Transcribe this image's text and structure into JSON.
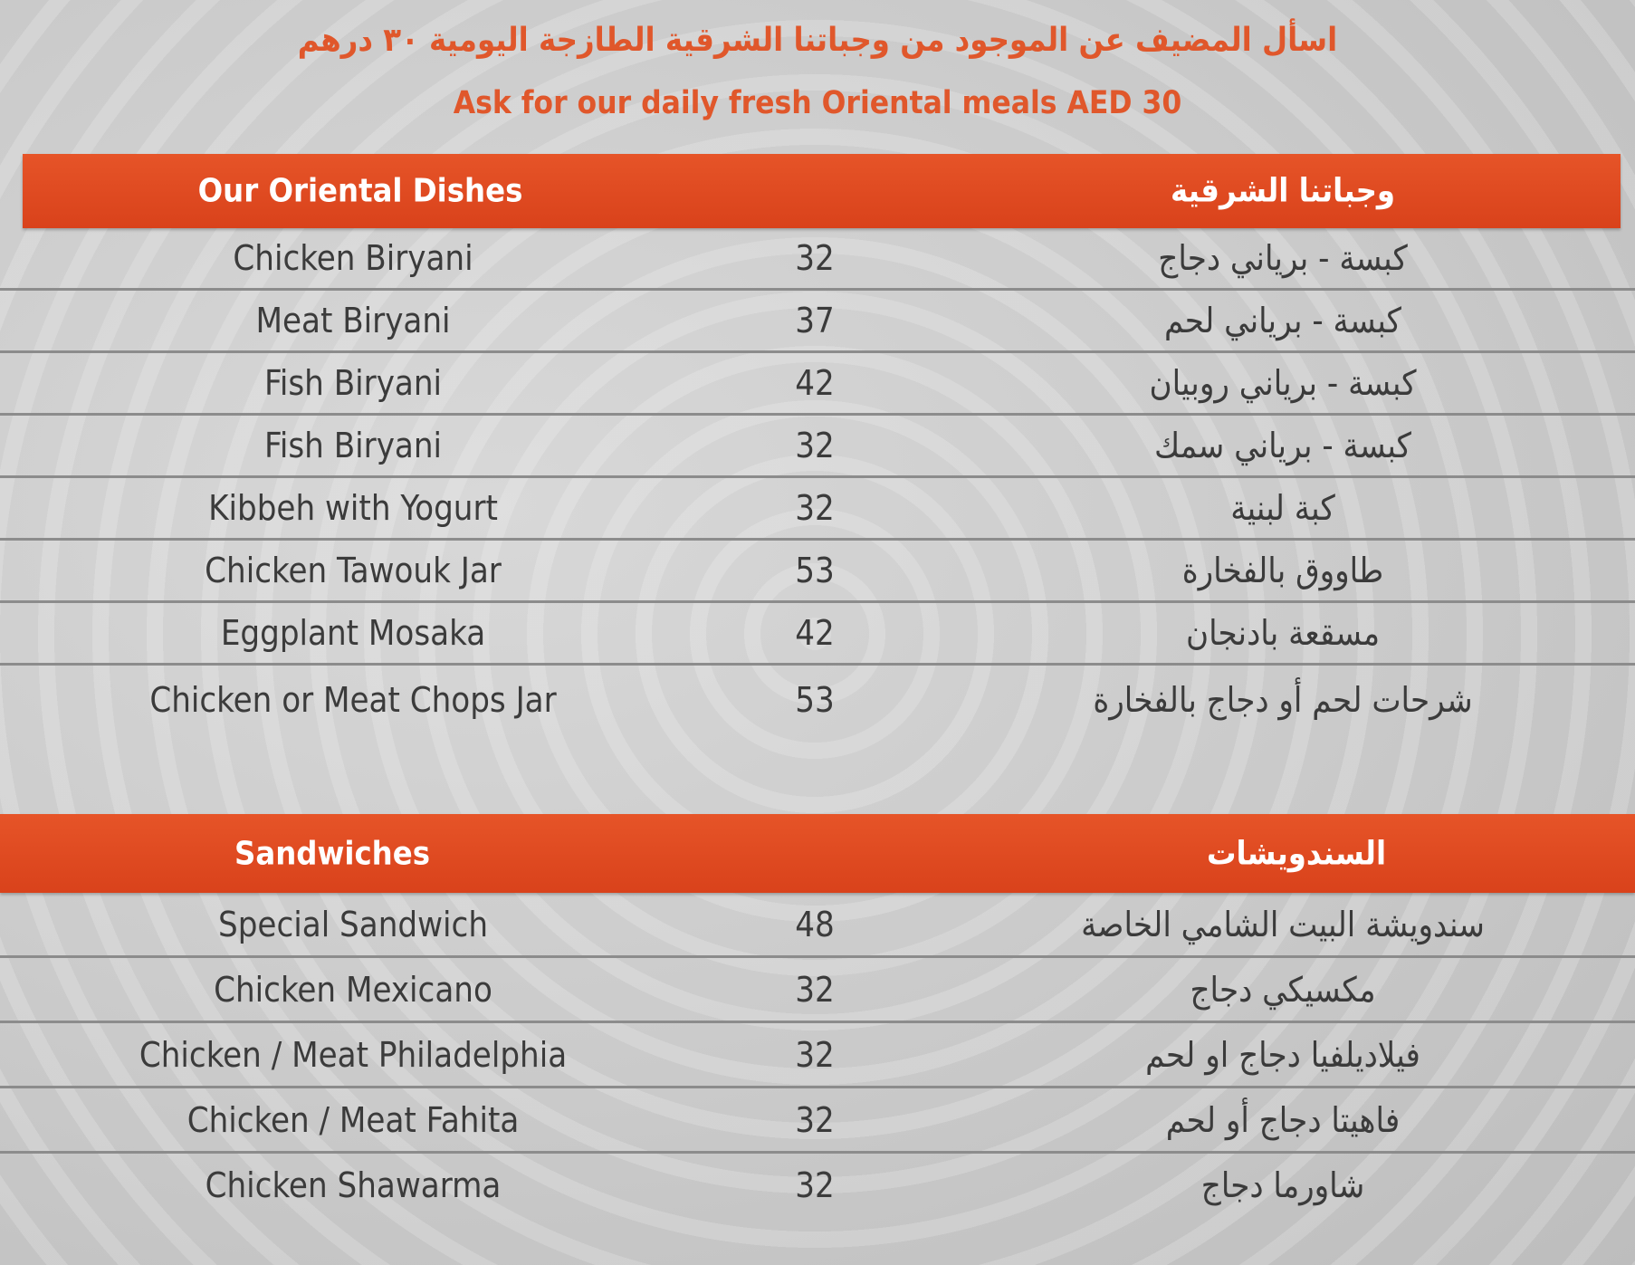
{
  "intro": {
    "arabic": "اسأل المضيف عن الموجود من وجباتنا الشرقية الطازجة اليومية ٣٠ درهم",
    "english": "Ask for our daily fresh Oriental meals AED 30"
  },
  "colors": {
    "accent": "#e04a1f",
    "background": "#cccccc",
    "text": "#3b3b3b"
  },
  "sections": [
    {
      "title_en": "Our Oriental Dishes",
      "title_ar": "وجباتنا الشرقية",
      "items": [
        {
          "en": "Chicken Biryani",
          "price": "32",
          "ar": "كبسة - برياني دجاج"
        },
        {
          "en": "Meat Biryani",
          "price": "37",
          "ar": "كبسة - برياني لحم"
        },
        {
          "en": "Fish Biryani",
          "price": "42",
          "ar": "كبسة - برياني روبيان"
        },
        {
          "en": "Fish Biryani",
          "price": "32",
          "ar": "كبسة - برياني سمك"
        },
        {
          "en": "Kibbeh with Yogurt",
          "price": "32",
          "ar": "كبة لبنية"
        },
        {
          "en": "Chicken Tawouk Jar",
          "price": "53",
          "ar": "طاووق بالفخارة"
        },
        {
          "en": "Eggplant Mosaka",
          "price": "42",
          "ar": "مسقعة بادنجان"
        },
        {
          "en": "Chicken or Meat Chops Jar",
          "price": "53",
          "ar": "شرحات لحم أو دجاج بالفخارة"
        }
      ]
    },
    {
      "title_en": "Sandwiches",
      "title_ar": "السندويشات",
      "items": [
        {
          "en": "Special Sandwich",
          "price": "48",
          "ar": "سندويشة البيت الشامي الخاصة"
        },
        {
          "en": "Chicken Mexicano",
          "price": "32",
          "ar": "مكسيكي دجاج"
        },
        {
          "en": "Chicken / Meat Philadelphia",
          "price": "32",
          "ar": "فيلاديلفيا دجاج او لحم"
        },
        {
          "en": "Chicken / Meat Fahita",
          "price": "32",
          "ar": "فاهيتا دجاج أو لحم"
        },
        {
          "en": "Chicken Shawarma",
          "price": "32",
          "ar": "شاورما دجاج"
        }
      ]
    }
  ]
}
